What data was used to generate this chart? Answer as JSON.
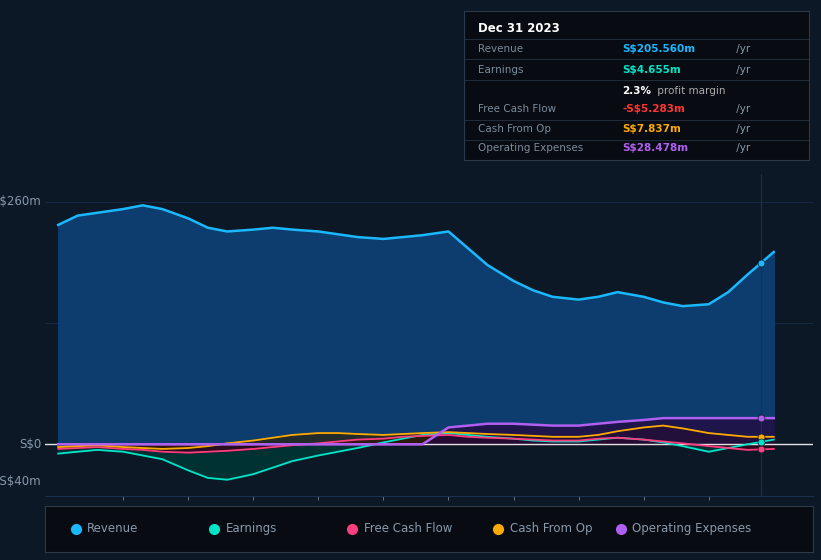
{
  "bg_color": "#0d1827",
  "plot_bg_color": "#0d1827",
  "grid_color": "#1a3050",
  "ylabel_top": "S$260m",
  "ylabel_zero": "S$0",
  "ylabel_neg": "-S$40m",
  "ylim": [
    -55,
    290
  ],
  "xlim": [
    2012.8,
    2024.6
  ],
  "xticks": [
    2014,
    2015,
    2016,
    2017,
    2018,
    2019,
    2020,
    2021,
    2022,
    2023
  ],
  "years": [
    2013.0,
    2013.3,
    2013.6,
    2014.0,
    2014.3,
    2014.6,
    2015.0,
    2015.3,
    2015.6,
    2016.0,
    2016.3,
    2016.6,
    2017.0,
    2017.3,
    2017.6,
    2018.0,
    2018.3,
    2018.6,
    2019.0,
    2019.3,
    2019.6,
    2020.0,
    2020.3,
    2020.6,
    2021.0,
    2021.3,
    2021.6,
    2022.0,
    2022.3,
    2022.6,
    2023.0,
    2023.3,
    2023.6,
    2024.0
  ],
  "revenue": [
    235,
    245,
    248,
    252,
    256,
    252,
    242,
    232,
    228,
    230,
    232,
    230,
    228,
    225,
    222,
    220,
    222,
    224,
    228,
    210,
    192,
    175,
    165,
    158,
    155,
    158,
    163,
    158,
    152,
    148,
    150,
    163,
    182,
    206
  ],
  "earnings": [
    -10,
    -8,
    -6,
    -8,
    -12,
    -16,
    -28,
    -36,
    -38,
    -32,
    -25,
    -18,
    -12,
    -8,
    -4,
    2,
    6,
    10,
    12,
    10,
    8,
    6,
    4,
    3,
    3,
    5,
    7,
    5,
    2,
    -2,
    -8,
    -4,
    0,
    5
  ],
  "free_cash_flow": [
    -5,
    -4,
    -3,
    -5,
    -6,
    -8,
    -9,
    -8,
    -7,
    -5,
    -3,
    -1,
    1,
    3,
    5,
    6,
    8,
    9,
    10,
    8,
    7,
    6,
    5,
    4,
    4,
    6,
    7,
    5,
    3,
    1,
    -2,
    -4,
    -6,
    -5
  ],
  "cash_from_op": [
    -3,
    -2,
    -1,
    -3,
    -4,
    -5,
    -4,
    -2,
    1,
    4,
    7,
    10,
    12,
    12,
    11,
    10,
    11,
    12,
    13,
    12,
    11,
    10,
    9,
    8,
    8,
    10,
    14,
    18,
    20,
    17,
    12,
    10,
    8,
    8
  ],
  "operating_expenses": [
    0,
    0,
    0,
    0,
    0,
    0,
    0,
    0,
    0,
    0,
    0,
    0,
    0,
    0,
    0,
    0,
    0,
    0,
    18,
    20,
    22,
    22,
    21,
    20,
    20,
    22,
    24,
    26,
    28,
    28,
    28,
    28,
    28,
    28
  ],
  "revenue_color": "#1ab8ff",
  "revenue_fill": "#0d3d6e",
  "earnings_color": "#00e5c8",
  "earnings_fill": "#003535",
  "free_cash_flow_color": "#ff3d7f",
  "free_cash_flow_fill": "#3a0018",
  "cash_from_op_color": "#ffaa00",
  "cash_from_op_fill": "#302000",
  "operating_expenses_color": "#b060f0",
  "operating_expenses_fill": "#250840",
  "zero_line_color": "#e0e0e0",
  "tick_label_color": "#8899aa",
  "table_bg": "#080c12",
  "table_border": "#2a3a4a",
  "table_title_color": "#ffffff",
  "table_label_color": "#7a8a9a",
  "table_revenue_color": "#1ab8ff",
  "table_earnings_color": "#00e5c8",
  "table_margin_color": "#ffffff",
  "table_fcf_color": "#ff3333",
  "table_cashop_color": "#ffaa00",
  "table_opex_color": "#b060f0",
  "legend_bg": "#080c12",
  "legend_border": "#2a3a4a",
  "legend_text_color": "#8899aa",
  "dot_color_revenue": "#1ab8ff",
  "dot_color_opex": "#b060f0",
  "dot_color_cashop": "#ffaa00",
  "dot_color_fcf": "#ff3d7f",
  "dot_color_earnings": "#00e5c8",
  "vline_x": 2023.8
}
